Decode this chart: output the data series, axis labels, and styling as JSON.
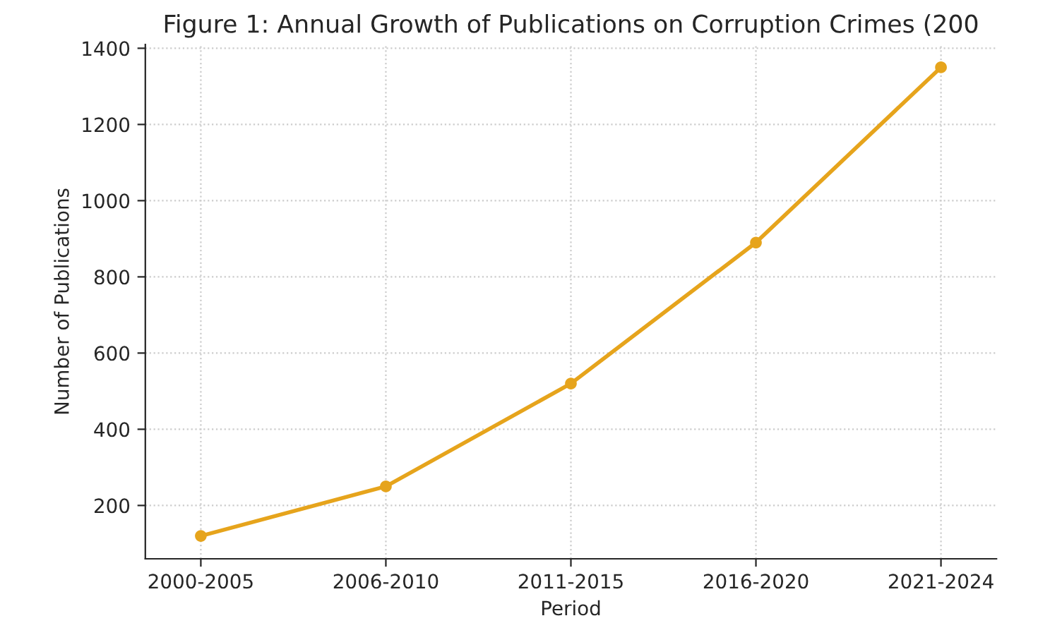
{
  "chart_data": {
    "type": "line",
    "title": "Figure 1: Annual Growth of Publications on Corruption Crimes (200",
    "xlabel": "Period",
    "ylabel": "Number of Publications",
    "categories": [
      "2000-2005",
      "2006-2010",
      "2011-2015",
      "2016-2020",
      "2021-2024"
    ],
    "series": [
      {
        "color": "#e6a41c",
        "values": [
          120,
          250,
          520,
          890,
          1350
        ]
      }
    ],
    "ylim": [
      60,
      1410
    ],
    "yticks": [
      200,
      400,
      600,
      800,
      1000,
      1200,
      1400
    ],
    "grid": true,
    "marker": "circle",
    "line_style": "solid",
    "legend": false
  }
}
